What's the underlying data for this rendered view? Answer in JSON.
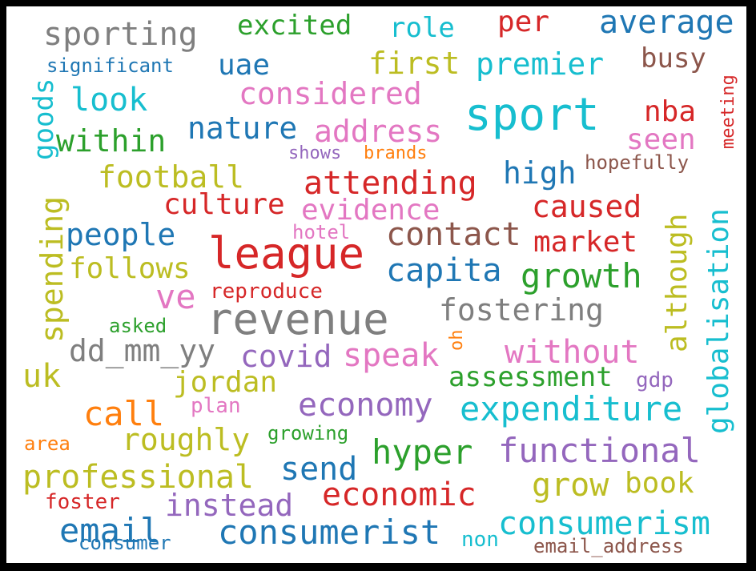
{
  "colors": {
    "blue": "#1f77b4",
    "orange": "#ff7f0e",
    "green": "#2ca02c",
    "red": "#d62728",
    "purple": "#9467bd",
    "brown": "#8c564b",
    "pink": "#e377c2",
    "gray": "#7f7f7f",
    "olive": "#bcbd22",
    "cyan": "#17becf"
  },
  "words": [
    {
      "key": "sporting",
      "text": "sporting",
      "color": "gray"
    },
    {
      "key": "excited",
      "text": "excited",
      "color": "green"
    },
    {
      "key": "role",
      "text": "role",
      "color": "cyan"
    },
    {
      "key": "per",
      "text": "per",
      "color": "red"
    },
    {
      "key": "average",
      "text": "average",
      "color": "blue"
    },
    {
      "key": "significant",
      "text": "significant",
      "color": "blue"
    },
    {
      "key": "uae",
      "text": "uae",
      "color": "blue"
    },
    {
      "key": "first",
      "text": "first",
      "color": "olive"
    },
    {
      "key": "premier",
      "text": "premier",
      "color": "cyan"
    },
    {
      "key": "busy",
      "text": "busy",
      "color": "brown"
    },
    {
      "key": "meeting",
      "text": "meeting",
      "color": "red"
    },
    {
      "key": "look",
      "text": "look",
      "color": "cyan"
    },
    {
      "key": "considered",
      "text": "considered",
      "color": "pink"
    },
    {
      "key": "goods",
      "text": "goods",
      "color": "cyan"
    },
    {
      "key": "sport",
      "text": "sport",
      "color": "cyan"
    },
    {
      "key": "nba",
      "text": "nba",
      "color": "red"
    },
    {
      "key": "within",
      "text": "within",
      "color": "green"
    },
    {
      "key": "nature",
      "text": "nature",
      "color": "blue"
    },
    {
      "key": "address",
      "text": "address",
      "color": "pink"
    },
    {
      "key": "seen",
      "text": "seen",
      "color": "pink"
    },
    {
      "key": "shows",
      "text": "shows",
      "color": "purple"
    },
    {
      "key": "brands",
      "text": "brands",
      "color": "orange"
    },
    {
      "key": "hopefully",
      "text": "hopefully",
      "color": "brown"
    },
    {
      "key": "football",
      "text": "football",
      "color": "olive"
    },
    {
      "key": "high",
      "text": "high",
      "color": "blue"
    },
    {
      "key": "attending",
      "text": "attending",
      "color": "red"
    },
    {
      "key": "globalisation",
      "text": "globalisation",
      "color": "cyan"
    },
    {
      "key": "culture",
      "text": "culture",
      "color": "red"
    },
    {
      "key": "caused",
      "text": "caused",
      "color": "red"
    },
    {
      "key": "evidence",
      "text": "evidence",
      "color": "pink"
    },
    {
      "key": "although",
      "text": "although",
      "color": "olive"
    },
    {
      "key": "spending",
      "text": "spending",
      "color": "olive"
    },
    {
      "key": "people",
      "text": "people",
      "color": "blue"
    },
    {
      "key": "hotel",
      "text": "hotel",
      "color": "pink"
    },
    {
      "key": "contact",
      "text": "contact",
      "color": "brown"
    },
    {
      "key": "market",
      "text": "market",
      "color": "red"
    },
    {
      "key": "league",
      "text": "league",
      "color": "red"
    },
    {
      "key": "follows",
      "text": "follows",
      "color": "olive"
    },
    {
      "key": "capita",
      "text": "capita",
      "color": "blue"
    },
    {
      "key": "growth",
      "text": "growth",
      "color": "green"
    },
    {
      "key": "ve",
      "text": "ve",
      "color": "pink"
    },
    {
      "key": "reproduce",
      "text": "reproduce",
      "color": "red"
    },
    {
      "key": "revenue",
      "text": "revenue",
      "color": "gray"
    },
    {
      "key": "fostering",
      "text": "fostering",
      "color": "gray"
    },
    {
      "key": "asked",
      "text": "asked",
      "color": "green"
    },
    {
      "key": "oh",
      "text": "oh",
      "color": "orange"
    },
    {
      "key": "dd_mm_yy",
      "text": "dd_mm_yy",
      "color": "gray"
    },
    {
      "key": "covid",
      "text": "covid",
      "color": "purple"
    },
    {
      "key": "speak",
      "text": "speak",
      "color": "pink"
    },
    {
      "key": "without",
      "text": "without",
      "color": "pink"
    },
    {
      "key": "uk",
      "text": "uk",
      "color": "olive"
    },
    {
      "key": "jordan",
      "text": "jordan",
      "color": "olive"
    },
    {
      "key": "assessment",
      "text": "assessment",
      "color": "green"
    },
    {
      "key": "gdp",
      "text": "gdp",
      "color": "purple"
    },
    {
      "key": "economy",
      "text": "economy",
      "color": "purple"
    },
    {
      "key": "plan",
      "text": "plan",
      "color": "pink"
    },
    {
      "key": "call",
      "text": "call",
      "color": "orange"
    },
    {
      "key": "expenditure",
      "text": "expenditure",
      "color": "cyan"
    },
    {
      "key": "roughly",
      "text": "roughly",
      "color": "olive"
    },
    {
      "key": "growing",
      "text": "growing",
      "color": "green"
    },
    {
      "key": "area",
      "text": "area",
      "color": "orange"
    },
    {
      "key": "hyper",
      "text": "hyper",
      "color": "green"
    },
    {
      "key": "functional",
      "text": "functional",
      "color": "purple"
    },
    {
      "key": "send",
      "text": "send",
      "color": "blue"
    },
    {
      "key": "professional",
      "text": "professional",
      "color": "olive"
    },
    {
      "key": "grow",
      "text": "grow",
      "color": "olive"
    },
    {
      "key": "book",
      "text": "book",
      "color": "olive"
    },
    {
      "key": "foster",
      "text": "foster",
      "color": "red"
    },
    {
      "key": "instead",
      "text": "instead",
      "color": "purple"
    },
    {
      "key": "economic",
      "text": "economic",
      "color": "red"
    },
    {
      "key": "email",
      "text": "email",
      "color": "blue"
    },
    {
      "key": "consumerism",
      "text": "consumerism",
      "color": "cyan"
    },
    {
      "key": "consumerist",
      "text": "consumerist",
      "color": "blue"
    },
    {
      "key": "consumer",
      "text": "consumer",
      "color": "blue"
    },
    {
      "key": "non",
      "text": "non",
      "color": "cyan"
    },
    {
      "key": "email_address",
      "text": "email_address",
      "color": "brown"
    }
  ]
}
